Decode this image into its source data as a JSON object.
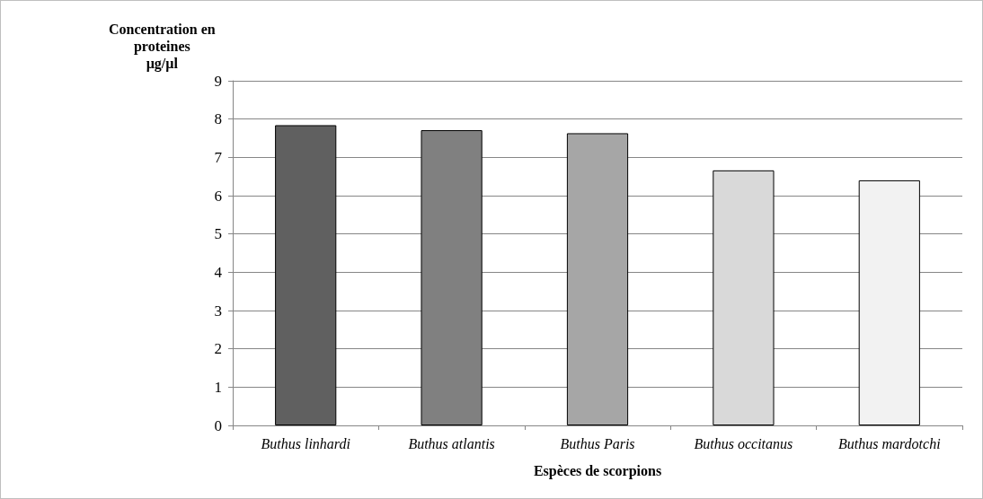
{
  "chart_data": {
    "type": "bar",
    "ylabel": "Concentration en\nproteines\nµg/µl",
    "xlabel": "Espèces de scorpions",
    "categories": [
      "Buthus linhardi",
      "Buthus atlantis",
      "Buthus Paris",
      "Buthus occitanus",
      "Buthus mardotchi"
    ],
    "values": [
      7.84,
      7.71,
      7.63,
      6.66,
      6.4
    ],
    "colors": [
      "#606060",
      "#808080",
      "#a6a6a6",
      "#d9d9d9",
      "#f2f2f2"
    ],
    "ylim": [
      0,
      9
    ],
    "yticks": [
      0,
      1,
      2,
      3,
      4,
      5,
      6,
      7,
      8,
      9
    ],
    "grid": "y"
  }
}
